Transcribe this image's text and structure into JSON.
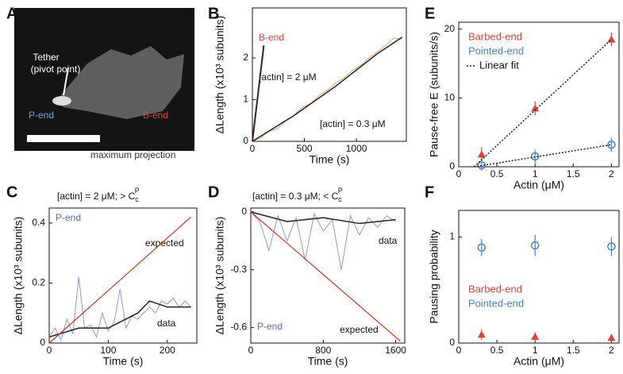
{
  "chart_data": [
    {
      "type": "image",
      "label": "A",
      "annotations": [
        {
          "text": "Tether",
          "color": "#ffffff"
        },
        {
          "text": "(pivot point)",
          "color": "#ffffff"
        },
        {
          "text": "P-end",
          "color": "#6aa8e8"
        },
        {
          "text": "B-end",
          "color": "#d8463a"
        },
        {
          "text": "maximum projection",
          "color": "#333333"
        }
      ]
    },
    {
      "type": "line",
      "label": "B",
      "xlabel": "Time (s)",
      "ylabel": "ΔLength (x10³ subunits)",
      "xlim": [
        0,
        1480
      ],
      "xticks": [
        0,
        500,
        1000
      ],
      "ylim": [
        0,
        3.2
      ],
      "yticks": [
        0,
        1,
        2
      ],
      "series": [
        {
          "color": "#f0a07a",
          "width": 1,
          "x": [
            0,
            80,
            160,
            240,
            320,
            400,
            480,
            560,
            640,
            720,
            800,
            880,
            960,
            1040,
            1120,
            1200,
            1280,
            1360,
            1440
          ],
          "values": [
            0,
            0.08,
            0.25,
            0.3,
            0.5,
            0.62,
            0.82,
            0.9,
            1.1,
            1.22,
            1.4,
            1.52,
            1.7,
            1.82,
            2.0,
            2.15,
            2.3,
            2.48,
            2.45
          ]
        },
        {
          "color": "#222222",
          "width": 1.5,
          "x": [
            0,
            400,
            800,
            1200,
            1440
          ],
          "values": [
            0,
            0.62,
            1.32,
            2.1,
            2.5
          ]
        },
        {
          "color": "#3a2020",
          "width": 2,
          "x": [
            0,
            110
          ],
          "values": [
            0,
            2.3
          ]
        }
      ],
      "annotations": [
        {
          "text": "B-end",
          "color": "#d8463a"
        },
        {
          "text": "[actin] = 2 μM",
          "color": "#111111"
        },
        {
          "text": "[actin] = 0.3 μM",
          "color": "#111111"
        }
      ]
    },
    {
      "type": "line",
      "label": "C",
      "title": {
        "text": "[actin] = 2 μM; > C",
        "sub": "c",
        "sup": "P"
      },
      "xlabel": "Time (s)",
      "ylabel": "ΔLength (x10³ subunits)",
      "xlim": [
        0,
        250
      ],
      "xticks": [
        0,
        100,
        200
      ],
      "ylim": [
        0,
        0.45
      ],
      "yticks": [
        0,
        0.2,
        0.4
      ],
      "series": [
        {
          "color": "#8a9ad8",
          "width": 1,
          "x": [
            0,
            10,
            20,
            30,
            40,
            50,
            60,
            70,
            80,
            90,
            100,
            110,
            120,
            130,
            140,
            150,
            160,
            170,
            180,
            190,
            200,
            210,
            220,
            230,
            240
          ],
          "values": [
            0.02,
            0.05,
            0.01,
            0.08,
            0.03,
            0.22,
            0.05,
            0.06,
            0.02,
            0.1,
            0.04,
            0.07,
            0.18,
            0.05,
            0.09,
            0.08,
            0.1,
            0.12,
            0.1,
            0.14,
            0.13,
            0.15,
            0.12,
            0.14,
            0.12
          ]
        },
        {
          "color": "#222222",
          "width": 1.5,
          "x": [
            0,
            50,
            100,
            150,
            170,
            200,
            240
          ],
          "values": [
            0.02,
            0.05,
            0.05,
            0.1,
            0.14,
            0.12,
            0.12
          ]
        },
        {
          "color": "#cc3322",
          "width": 1.2,
          "x": [
            0,
            240
          ],
          "values": [
            0,
            0.42
          ]
        }
      ],
      "annotations": [
        {
          "text": "P-end",
          "color": "#5566cc"
        },
        {
          "text": "expected",
          "color": "#111111"
        },
        {
          "text": "data",
          "color": "#111111"
        }
      ]
    },
    {
      "type": "line",
      "label": "D",
      "title": {
        "text": "[actin] = 0.3 μM; < C",
        "sub": "c",
        "sup": "P"
      },
      "xlabel": "Time (s)",
      "ylabel": "ΔLength (x10³ subunits)",
      "xlim": [
        0,
        1700
      ],
      "xticks": [
        0,
        800,
        1600
      ],
      "ylim": [
        -0.68,
        0.02
      ],
      "yticks": [
        0,
        -0.3,
        -0.6
      ],
      "series": [
        {
          "color": "#8a9ad8",
          "width": 1,
          "x": [
            0,
            100,
            200,
            300,
            400,
            500,
            600,
            700,
            800,
            900,
            1000,
            1100,
            1200,
            1300,
            1400,
            1500,
            1600
          ],
          "values": [
            0,
            -0.05,
            -0.2,
            -0.02,
            -0.15,
            -0.03,
            -0.25,
            -0.01,
            -0.1,
            -0.04,
            -0.3,
            -0.02,
            -0.12,
            -0.03,
            -0.08,
            -0.02,
            -0.05
          ]
        },
        {
          "color": "#222222",
          "width": 1.5,
          "x": [
            0,
            400,
            800,
            1200,
            1600
          ],
          "values": [
            0,
            -0.05,
            -0.03,
            -0.06,
            -0.04
          ]
        },
        {
          "color": "#cc3322",
          "width": 1.2,
          "x": [
            0,
            1650
          ],
          "values": [
            0,
            -0.67
          ]
        }
      ],
      "annotations": [
        {
          "text": "P-end",
          "color": "#5566cc"
        },
        {
          "text": "expected",
          "color": "#111111"
        },
        {
          "text": "data",
          "color": "#111111"
        }
      ]
    },
    {
      "type": "scatter",
      "label": "E",
      "xlabel": "Actin (μM)",
      "ylabel": "Pause-free E (subunits/s)",
      "xlim": [
        0,
        2.1
      ],
      "xticks": [
        0,
        0.5,
        1,
        1.5,
        2
      ],
      "ylim": [
        0,
        21
      ],
      "yticks": [
        0,
        10,
        20
      ],
      "series": [
        {
          "name": "Barbed-end",
          "color": "#d8463a",
          "marker": "triangle",
          "x": [
            0.3,
            1,
            2
          ],
          "values": [
            1.8,
            8.5,
            18.5
          ],
          "errors": [
            1,
            1,
            1
          ]
        },
        {
          "name": "Pointed-end",
          "color": "#4a7fd0",
          "marker": "circle",
          "x": [
            0.3,
            1,
            2
          ],
          "values": [
            0.2,
            1.5,
            3.2
          ],
          "errors": [
            0.8,
            1,
            1
          ]
        },
        {
          "name": "Linear fit",
          "color": "#222222",
          "dash": true,
          "width": 1.5,
          "x": [
            0.2,
            2
          ],
          "values": [
            0,
            18.5
          ]
        },
        {
          "color": "#222222",
          "dash": true,
          "width": 1.5,
          "x": [
            0.2,
            2
          ],
          "values": [
            0,
            3.2
          ]
        }
      ]
    },
    {
      "type": "scatter",
      "label": "F",
      "xlabel": "Actin (μM)",
      "ylabel": "Pausing probability",
      "xlim": [
        0,
        2.1
      ],
      "xticks": [
        0,
        0.5,
        1,
        1.5,
        2
      ],
      "ylim": [
        0,
        1.25
      ],
      "yticks": [
        0,
        1
      ],
      "series": [
        {
          "name": "Barbed-end",
          "color": "#d8463a",
          "marker": "triangle",
          "x": [
            0.3,
            1,
            2
          ],
          "values": [
            0.08,
            0.06,
            0.05
          ],
          "errors": [
            0.05,
            0.04,
            0.03
          ]
        },
        {
          "name": "Pointed-end",
          "color": "#4a7fd0",
          "marker": "circle",
          "x": [
            0.3,
            1,
            2
          ],
          "values": [
            0.9,
            0.92,
            0.91
          ],
          "errors": [
            0.08,
            0.1,
            0.09
          ]
        }
      ]
    }
  ]
}
